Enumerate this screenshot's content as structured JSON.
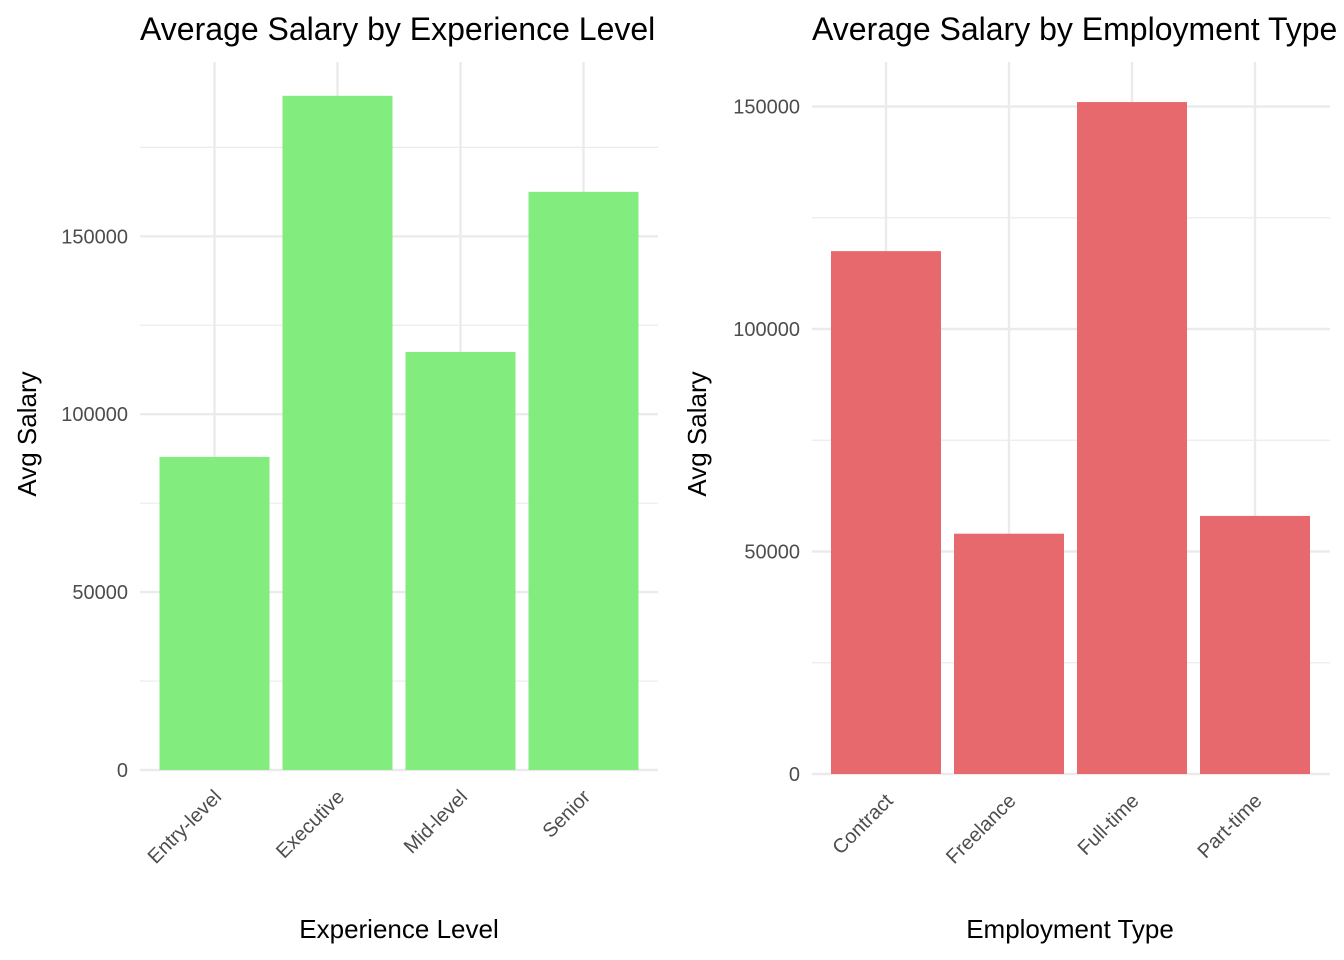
{
  "chart_data": [
    {
      "type": "bar",
      "title": "Average Salary by Experience Level",
      "xlabel": "Experience Level",
      "ylabel": "Avg Salary",
      "categories": [
        "Entry-level",
        "Executive",
        "Mid-level",
        "Senior"
      ],
      "values": [
        88000,
        189500,
        117500,
        162500
      ],
      "ylim": [
        0,
        200000
      ],
      "yticks": [
        0,
        50000,
        100000,
        150000
      ],
      "grid": true,
      "color": "#82ED7E"
    },
    {
      "type": "bar",
      "title": "Average Salary by Employment Type",
      "xlabel": "Employment Type",
      "ylabel": "Avg Salary",
      "categories": [
        "Contract",
        "Freelance",
        "Full-time",
        "Part-time"
      ],
      "values": [
        117500,
        54000,
        151000,
        58000
      ],
      "ylim": [
        0,
        160000
      ],
      "yticks": [
        0,
        50000,
        100000,
        150000
      ],
      "grid": true,
      "color": "#E8696D"
    }
  ]
}
